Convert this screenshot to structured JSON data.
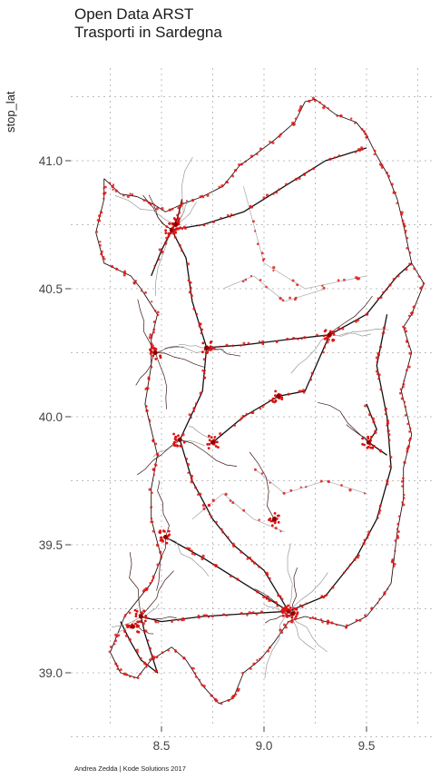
{
  "title": [
    "Open Data ARST",
    "Trasporti in Sardegna"
  ],
  "y_axis_label": "stop_lat",
  "caption": "Andrea Zedda | Kode Solutions 2017",
  "colors": {
    "stops": "#e01010",
    "routes": "#111111",
    "minor_routes": "#b0b0b0",
    "grid": "#bdbdbd"
  },
  "chart_data": {
    "type": "scatter",
    "x_ticks": [
      "8.5",
      "9.0",
      "9.5"
    ],
    "y_ticks": [
      "39.0",
      "39.5",
      "40.0",
      "40.5",
      "41.0"
    ],
    "ylabel": "stop_lat",
    "grid": true,
    "hubs": [
      [
        8.55,
        40.73
      ],
      [
        8.57,
        40.75
      ],
      [
        8.47,
        40.25
      ],
      [
        8.72,
        40.27
      ],
      [
        8.59,
        39.91
      ],
      [
        8.52,
        39.53
      ],
      [
        9.12,
        39.24
      ],
      [
        9.14,
        39.23
      ],
      [
        9.32,
        40.32
      ],
      [
        9.51,
        39.9
      ],
      [
        8.4,
        39.22
      ],
      [
        8.36,
        39.18
      ],
      [
        8.75,
        39.9
      ],
      [
        9.07,
        40.08
      ],
      [
        9.05,
        39.6
      ]
    ],
    "coastline": [
      [
        8.22,
        40.93
      ],
      [
        8.3,
        40.87
      ],
      [
        8.38,
        40.86
      ],
      [
        8.46,
        40.83
      ],
      [
        8.52,
        40.8
      ],
      [
        8.6,
        40.83
      ],
      [
        8.7,
        40.86
      ],
      [
        8.8,
        40.9
      ],
      [
        8.88,
        40.98
      ],
      [
        8.95,
        41.02
      ],
      [
        9.05,
        41.08
      ],
      [
        9.15,
        41.15
      ],
      [
        9.2,
        41.23
      ],
      [
        9.25,
        41.24
      ],
      [
        9.35,
        41.18
      ],
      [
        9.45,
        41.15
      ],
      [
        9.5,
        41.1
      ],
      [
        9.55,
        41.02
      ],
      [
        9.6,
        40.95
      ],
      [
        9.65,
        40.85
      ],
      [
        9.68,
        40.75
      ],
      [
        9.72,
        40.6
      ],
      [
        9.78,
        40.52
      ],
      [
        9.72,
        40.4
      ],
      [
        9.68,
        40.35
      ],
      [
        9.72,
        40.25
      ],
      [
        9.67,
        40.1
      ],
      [
        9.7,
        40.0
      ],
      [
        9.72,
        39.93
      ],
      [
        9.68,
        39.8
      ],
      [
        9.68,
        39.68
      ],
      [
        9.65,
        39.55
      ],
      [
        9.62,
        39.35
      ],
      [
        9.58,
        39.3
      ],
      [
        9.5,
        39.22
      ],
      [
        9.4,
        39.18
      ],
      [
        9.3,
        39.2
      ],
      [
        9.2,
        39.22
      ],
      [
        9.12,
        39.2
      ],
      [
        9.05,
        39.12
      ],
      [
        8.98,
        39.05
      ],
      [
        8.9,
        39.0
      ],
      [
        8.85,
        38.9
      ],
      [
        8.78,
        38.88
      ],
      [
        8.7,
        38.95
      ],
      [
        8.62,
        39.05
      ],
      [
        8.55,
        39.1
      ],
      [
        8.45,
        39.05
      ],
      [
        8.38,
        38.98
      ],
      [
        8.3,
        39.0
      ],
      [
        8.25,
        39.08
      ],
      [
        8.32,
        39.22
      ],
      [
        8.45,
        39.35
      ],
      [
        8.5,
        39.45
      ],
      [
        8.45,
        39.6
      ],
      [
        8.45,
        39.72
      ],
      [
        8.48,
        39.85
      ],
      [
        8.45,
        39.95
      ],
      [
        8.42,
        40.05
      ],
      [
        8.45,
        40.2
      ],
      [
        8.45,
        40.3
      ],
      [
        8.48,
        40.4
      ],
      [
        8.4,
        40.5
      ],
      [
        8.35,
        40.55
      ],
      [
        8.22,
        40.6
      ],
      [
        8.18,
        40.72
      ],
      [
        8.22,
        40.85
      ],
      [
        8.22,
        40.93
      ]
    ],
    "main_routes": [
      [
        [
          8.55,
          40.73
        ],
        [
          8.62,
          40.62
        ],
        [
          8.65,
          40.45
        ],
        [
          8.72,
          40.27
        ],
        [
          8.7,
          40.1
        ],
        [
          8.59,
          39.91
        ],
        [
          8.65,
          39.75
        ],
        [
          8.75,
          39.6
        ],
        [
          8.85,
          39.5
        ],
        [
          9.0,
          39.4
        ],
        [
          9.12,
          39.24
        ]
      ],
      [
        [
          8.72,
          40.27
        ],
        [
          8.9,
          40.28
        ],
        [
          9.1,
          40.3
        ],
        [
          9.32,
          40.32
        ],
        [
          9.5,
          40.4
        ],
        [
          9.65,
          40.55
        ],
        [
          9.72,
          40.6
        ]
      ],
      [
        [
          8.55,
          40.73
        ],
        [
          8.7,
          40.75
        ],
        [
          8.9,
          40.8
        ],
        [
          9.1,
          40.9
        ],
        [
          9.3,
          41.0
        ],
        [
          9.5,
          41.05
        ]
      ],
      [
        [
          8.52,
          39.53
        ],
        [
          8.7,
          39.45
        ],
        [
          8.9,
          39.35
        ],
        [
          9.12,
          39.24
        ]
      ],
      [
        [
          8.4,
          39.22
        ],
        [
          8.5,
          39.2
        ],
        [
          8.7,
          39.22
        ],
        [
          8.9,
          39.23
        ],
        [
          9.12,
          39.24
        ]
      ],
      [
        [
          9.12,
          39.24
        ],
        [
          9.3,
          39.3
        ],
        [
          9.45,
          39.45
        ],
        [
          9.55,
          39.6
        ],
        [
          9.62,
          39.8
        ],
        [
          9.6,
          40.0
        ],
        [
          9.55,
          40.2
        ],
        [
          9.6,
          40.4
        ]
      ],
      [
        [
          9.32,
          40.32
        ],
        [
          9.2,
          40.1
        ],
        [
          9.07,
          40.08
        ],
        [
          8.9,
          40.0
        ],
        [
          8.75,
          39.9
        ]
      ],
      [
        [
          8.3,
          39.2
        ],
        [
          8.35,
          39.12
        ],
        [
          8.4,
          39.05
        ],
        [
          8.48,
          39.0
        ],
        [
          8.42,
          39.15
        ],
        [
          8.4,
          39.22
        ]
      ],
      [
        [
          9.5,
          40.05
        ],
        [
          9.55,
          39.95
        ],
        [
          9.51,
          39.9
        ],
        [
          9.6,
          39.85
        ]
      ],
      [
        [
          8.6,
          40.85
        ],
        [
          8.58,
          40.78
        ],
        [
          8.55,
          40.73
        ],
        [
          8.5,
          40.65
        ],
        [
          8.45,
          40.55
        ]
      ]
    ],
    "minor_routes": [
      [
        [
          8.9,
          40.9
        ],
        [
          9.0,
          40.6
        ],
        [
          9.2,
          40.5
        ],
        [
          9.5,
          40.55
        ]
      ],
      [
        [
          8.95,
          39.8
        ],
        [
          9.1,
          39.7
        ],
        [
          9.3,
          39.75
        ],
        [
          9.5,
          39.7
        ]
      ],
      [
        [
          8.8,
          40.5
        ],
        [
          8.95,
          40.55
        ],
        [
          9.1,
          40.45
        ],
        [
          9.3,
          40.5
        ]
      ],
      [
        [
          8.65,
          39.6
        ],
        [
          8.8,
          39.7
        ],
        [
          8.95,
          39.6
        ],
        [
          9.1,
          39.55
        ]
      ]
    ]
  }
}
